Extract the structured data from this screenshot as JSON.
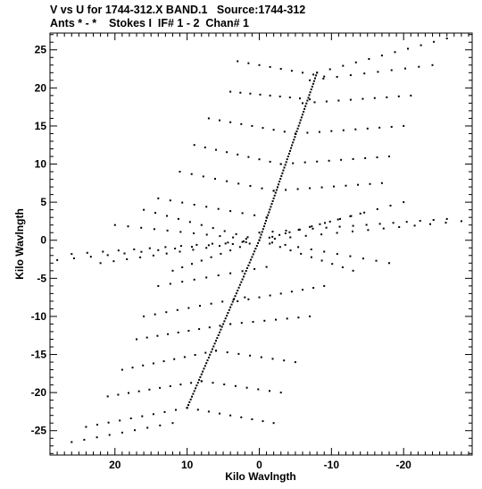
{
  "header": {
    "line1": "V vs U for 1744-312.X BAND.1   Source:1744-312",
    "line2": "Ants * - *    Stokes I  IF# 1 - 2  Chan# 1"
  },
  "chart_data": {
    "type": "scatter",
    "title": "V vs U for 1744-312.X BAND.1   Source:1744-312",
    "subtitle": "Ants * - *    Stokes I  IF# 1 - 2  Chan# 1",
    "xlabel": "Kilo Wavlngth",
    "ylabel": "Kilo Wavlngth",
    "xlim": [
      29,
      -29.5
    ],
    "ylim": [
      -28.2,
      27.2
    ],
    "x_reversed": true,
    "xticks": [
      20,
      10,
      0,
      -10,
      -20
    ],
    "xtick_labels": [
      "20",
      "10",
      "0",
      "-10",
      "-20"
    ],
    "yticks": [
      25,
      20,
      15,
      10,
      5,
      0,
      -5,
      -10,
      -15,
      -20,
      -25
    ],
    "ytick_labels": [
      "25",
      "20",
      "15",
      "10",
      "5",
      "0",
      "-5",
      "-10",
      "-15",
      "-20",
      "-25"
    ],
    "grid": false,
    "marker_color": "#000000",
    "tracks": [
      {
        "from": [
          0,
          0
        ],
        "to": [
          -8,
          22
        ],
        "n": 60
      },
      {
        "from": [
          0,
          0
        ],
        "to": [
          10,
          -22
        ],
        "n": 60
      },
      {
        "from": [
          -8,
          22
        ],
        "to": [
          -26,
          26.5
        ],
        "n": 10
      },
      {
        "from": [
          -7,
          21
        ],
        "to": [
          -24,
          23
        ],
        "n": 9
      },
      {
        "from": [
          3,
          23.5
        ],
        "to": [
          -9,
          21.5
        ],
        "n": 8
      },
      {
        "from": [
          -6,
          18
        ],
        "to": [
          -21,
          19
        ],
        "n": 9
      },
      {
        "from": [
          4,
          19.5
        ],
        "to": [
          -7,
          18.5
        ],
        "n": 8
      },
      {
        "from": [
          -5,
          14
        ],
        "to": [
          -20,
          15
        ],
        "n": 9
      },
      {
        "from": [
          7,
          16
        ],
        "to": [
          -5,
          14
        ],
        "n": 8
      },
      {
        "from": [
          -3,
          10
        ],
        "to": [
          -18,
          11
        ],
        "n": 9
      },
      {
        "from": [
          9,
          12.5
        ],
        "to": [
          -3,
          10
        ],
        "n": 8
      },
      {
        "from": [
          -2,
          6.5
        ],
        "to": [
          -17,
          7.5
        ],
        "n": 9
      },
      {
        "from": [
          11,
          9
        ],
        "to": [
          -2,
          6.5
        ],
        "n": 8
      },
      {
        "from": [
          0,
          1
        ],
        "to": [
          -26,
          2.8
        ],
        "n": 14
      },
      {
        "from": [
          14,
          5.5
        ],
        "to": [
          -1,
          3
        ],
        "n": 9
      },
      {
        "from": [
          0,
          0
        ],
        "to": [
          -28,
          2.5
        ],
        "n": 13
      },
      {
        "from": [
          0,
          0
        ],
        "to": [
          -20,
          5
        ],
        "n": 11
      },
      {
        "from": [
          0,
          0
        ],
        "to": [
          -14,
          3.5
        ],
        "n": 10
      },
      {
        "from": [
          0,
          0
        ],
        "to": [
          -18,
          -3
        ],
        "n": 10
      },
      {
        "from": [
          0,
          0
        ],
        "to": [
          -13,
          -4
        ],
        "n": 9
      },
      {
        "from": [
          0,
          0
        ],
        "to": [
          22,
          -3
        ],
        "n": 12
      },
      {
        "from": [
          0,
          0
        ],
        "to": [
          26,
          -1.8
        ],
        "n": 12
      },
      {
        "from": [
          0,
          0
        ],
        "to": [
          20,
          2
        ],
        "n": 11
      },
      {
        "from": [
          0,
          0
        ],
        "to": [
          16,
          4
        ],
        "n": 10
      },
      {
        "from": [
          0,
          0
        ],
        "to": [
          12,
          -4
        ],
        "n": 9
      },
      {
        "from": [
          0,
          0
        ],
        "to": [
          28,
          -2.6
        ],
        "n": 12
      },
      {
        "from": [
          14,
          -6
        ],
        "to": [
          -1,
          -3.5
        ],
        "n": 9
      },
      {
        "from": [
          16,
          -10
        ],
        "to": [
          2,
          -7.5
        ],
        "n": 9
      },
      {
        "from": [
          3,
          -8
        ],
        "to": [
          -9,
          -6
        ],
        "n": 8
      },
      {
        "from": [
          17,
          -13
        ],
        "to": [
          4,
          -11
        ],
        "n": 9
      },
      {
        "from": [
          4,
          -11
        ],
        "to": [
          -7,
          -10
        ],
        "n": 7
      },
      {
        "from": [
          19,
          -17
        ],
        "to": [
          6,
          -14.5
        ],
        "n": 9
      },
      {
        "from": [
          6,
          -14.5
        ],
        "to": [
          -5,
          -16
        ],
        "n": 7
      },
      {
        "from": [
          21,
          -20.5
        ],
        "to": [
          8,
          -18.5
        ],
        "n": 9
      },
      {
        "from": [
          8,
          -18.5
        ],
        "to": [
          -3,
          -20
        ],
        "n": 7
      },
      {
        "from": [
          24,
          -24.5
        ],
        "to": [
          10,
          -22
        ],
        "n": 9
      },
      {
        "from": [
          10,
          -22
        ],
        "to": [
          -2,
          -24
        ],
        "n": 8
      },
      {
        "from": [
          26,
          -26.5
        ],
        "to": [
          12,
          -24
        ],
        "n": 8
      }
    ]
  }
}
